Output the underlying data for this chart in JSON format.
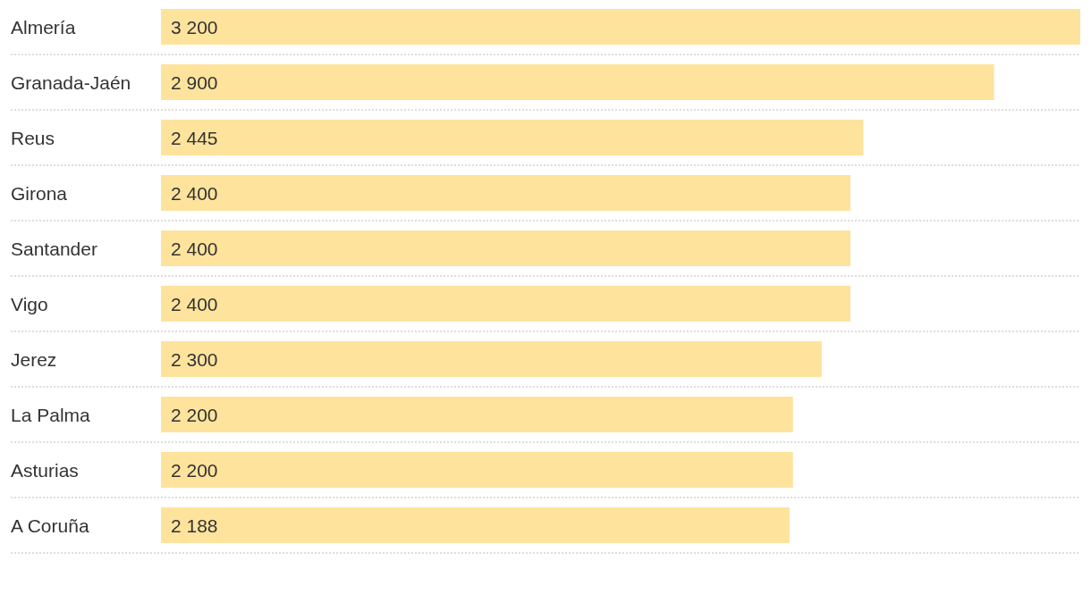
{
  "chart_data": {
    "type": "bar",
    "orientation": "horizontal",
    "categories": [
      "Almería",
      "Granada-Jaén",
      "Reus",
      "Girona",
      "Santander",
      "Vigo",
      "Jerez",
      "La Palma",
      "Asturias",
      "A Coruña"
    ],
    "values": [
      3200,
      2900,
      2445,
      2400,
      2400,
      2400,
      2300,
      2200,
      2200,
      2188
    ],
    "value_labels": [
      "3 200",
      "2 900",
      "2 445",
      "2 400",
      "2 400",
      "2 400",
      "2 300",
      "2 200",
      "2 200",
      "2 188"
    ],
    "color": "#fee39d"
  }
}
